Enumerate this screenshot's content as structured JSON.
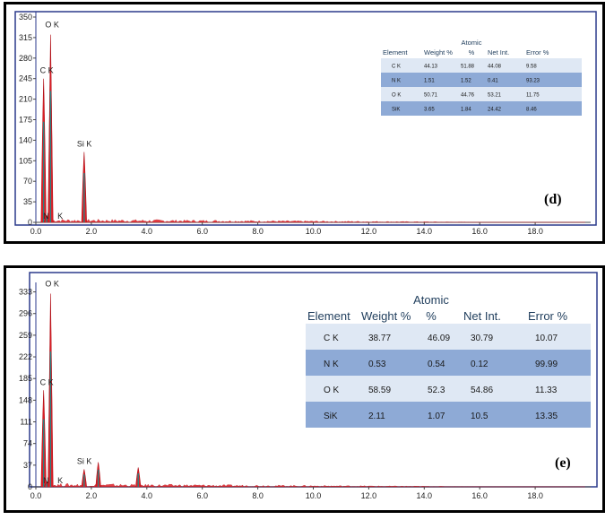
{
  "chart_data": [
    {
      "type": "line",
      "panel_label": "(d)",
      "xlim": [
        0,
        20
      ],
      "x_ticks": [
        "0.0",
        "2.0",
        "4.0",
        "6.0",
        "8.0",
        "10.0",
        "12.0",
        "14.0",
        "16.0",
        "18.0"
      ],
      "ylim": [
        0,
        350
      ],
      "y_ticks": [
        "0",
        "35",
        "70",
        "105",
        "140",
        "175",
        "210",
        "245",
        "280",
        "315",
        "350"
      ],
      "y_ticks_display": [
        "0",
        "35",
        "70",
        "105",
        "140",
        "175",
        "210",
        "245",
        "280",
        "315",
        "350"
      ],
      "peaks": [
        {
          "label": "C K",
          "x": 0.28,
          "y": 245
        },
        {
          "label": "N K",
          "x": 0.39,
          "y": 12
        },
        {
          "label": "O K",
          "x": 0.53,
          "y": 320
        },
        {
          "label": "Si K",
          "x": 1.74,
          "y": 120
        }
      ],
      "peak_labels": {
        "c": "C K",
        "n": "N",
        "n2": "K",
        "o": "O  K",
        "si": "Si K"
      },
      "table": {
        "headers": [
          "Element",
          "Weight %",
          "Atomic\n%",
          "Net Int.",
          "Error %"
        ],
        "header_atomic_top": "Atomic",
        "header_atomic_bottom": "%",
        "rows": [
          [
            "C K",
            "44.13",
            "51.88",
            "44.08",
            "9.58"
          ],
          [
            "N K",
            "1.51",
            "1.52",
            "0.41",
            "93.23"
          ],
          [
            "O K",
            "50.71",
            "44.76",
            "53.21",
            "11.75"
          ],
          [
            "SiK",
            "3.65",
            "1.84",
            "24.42",
            "8.46"
          ]
        ]
      }
    },
    {
      "type": "line",
      "panel_label": "(e)",
      "xlim": [
        0,
        20
      ],
      "x_ticks": [
        "0.0",
        "2.0",
        "4.0",
        "6.0",
        "8.0",
        "10.0",
        "12.0",
        "14.0",
        "16.0",
        "18.0"
      ],
      "ylim": [
        0,
        340
      ],
      "y_ticks": [
        "0",
        "37",
        "74",
        "111",
        "148",
        "185",
        "222",
        "259",
        "296",
        "333"
      ],
      "peaks": [
        {
          "label": "C K",
          "x": 0.28,
          "y": 165
        },
        {
          "label": "N K",
          "x": 0.39,
          "y": 8
        },
        {
          "label": "O K",
          "x": 0.53,
          "y": 330
        },
        {
          "label": "Si K",
          "x": 1.74,
          "y": 30
        },
        {
          "label": "",
          "x": 2.25,
          "y": 42
        },
        {
          "label": "",
          "x": 3.69,
          "y": 33
        }
      ],
      "peak_labels": {
        "c": "C K",
        "n": "N",
        "n2": "K",
        "o": "O  K",
        "si": "Si K"
      },
      "table": {
        "headers": [
          "Element",
          "Weight %",
          "Atomic\n%",
          "Net Int.",
          "Error %"
        ],
        "header_atomic_top": "Atomic",
        "header_atomic_bottom": "%",
        "rows": [
          [
            "C K",
            "38.77",
            "46.09",
            "30.79",
            "10.07"
          ],
          [
            "N K",
            "0.53",
            "0.54",
            "0.12",
            "99.99"
          ],
          [
            "O K",
            "58.59",
            "52.3",
            "54.86",
            "11.33"
          ],
          [
            "SiK",
            "2.11",
            "1.07",
            "10.5",
            "13.35"
          ]
        ]
      }
    }
  ],
  "colors": {
    "spectrum_fill": "#e21f26",
    "spectrum_line": "#b01018",
    "peak_core": "#1a8a8a",
    "axis_frame": "#2b3a8c",
    "row_light": "#dfe8f4",
    "row_dark": "#8eaad6",
    "header_text": "#1f3d5c"
  }
}
